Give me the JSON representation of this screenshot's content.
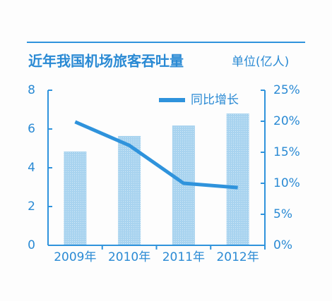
{
  "chart_data": {
    "type": "bar",
    "title": "近年我国机场旅客吞吐量",
    "unit": "单位(亿人)",
    "categories": [
      "2009年",
      "2010年",
      "2011年",
      "2012年"
    ],
    "series": [
      {
        "color": "#a8d3ef",
        "values": [
          4.84,
          5.64,
          6.18,
          6.8
        ]
      },
      {
        "name": "同比增长",
        "type": "line",
        "axis": "y2",
        "color": "#2f93dc",
        "values": [
          19.9,
          16.1,
          10,
          9.3
        ]
      }
    ],
    "ylim": [
      0,
      8
    ],
    "yticks": [
      0,
      2,
      4,
      6,
      8
    ],
    "y2lim": [
      0,
      25
    ],
    "y2ticks": [
      {
        "value": 0,
        "label": "0%"
      },
      {
        "value": 5,
        "label": "5%"
      },
      {
        "value": 10,
        "label": "10%"
      },
      {
        "value": 15,
        "label": "15%"
      },
      {
        "value": 20,
        "label": "20%"
      },
      {
        "value": 25,
        "label": "25%"
      }
    ],
    "legend": "top"
  }
}
